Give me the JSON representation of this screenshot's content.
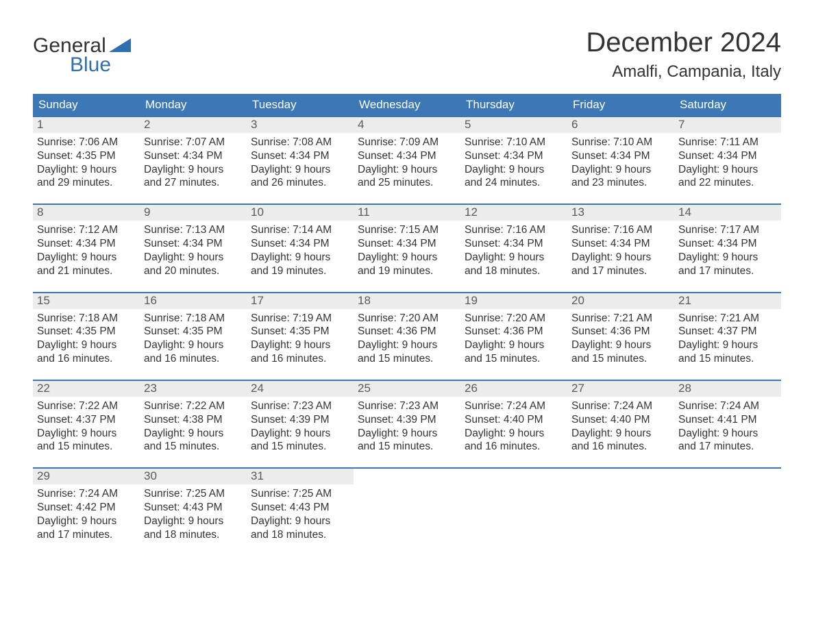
{
  "brand": {
    "word1": "General",
    "word2": "Blue",
    "accent_color": "#2f6fb0",
    "triangle_color": "#2f6fb0"
  },
  "title": "December 2024",
  "location": "Amalfi, Campania, Italy",
  "colors": {
    "header_bg": "#3b78b5",
    "header_text": "#ffffff",
    "daynum_bg": "#ececec",
    "daynum_text": "#5a5a5a",
    "body_text": "#333333",
    "week_border": "#3b78b5",
    "page_bg": "#ffffff"
  },
  "typography": {
    "title_fontsize": 40,
    "location_fontsize": 24,
    "weekday_fontsize": 17,
    "daynum_fontsize": 17,
    "cell_fontsize": 15.5,
    "logo_fontsize": 30
  },
  "weekdays": [
    "Sunday",
    "Monday",
    "Tuesday",
    "Wednesday",
    "Thursday",
    "Friday",
    "Saturday"
  ],
  "weeks": [
    [
      {
        "num": "1",
        "sunrise": "Sunrise: 7:06 AM",
        "sunset": "Sunset: 4:35 PM",
        "daylight": "Daylight: 9 hours and 29 minutes."
      },
      {
        "num": "2",
        "sunrise": "Sunrise: 7:07 AM",
        "sunset": "Sunset: 4:34 PM",
        "daylight": "Daylight: 9 hours and 27 minutes."
      },
      {
        "num": "3",
        "sunrise": "Sunrise: 7:08 AM",
        "sunset": "Sunset: 4:34 PM",
        "daylight": "Daylight: 9 hours and 26 minutes."
      },
      {
        "num": "4",
        "sunrise": "Sunrise: 7:09 AM",
        "sunset": "Sunset: 4:34 PM",
        "daylight": "Daylight: 9 hours and 25 minutes."
      },
      {
        "num": "5",
        "sunrise": "Sunrise: 7:10 AM",
        "sunset": "Sunset: 4:34 PM",
        "daylight": "Daylight: 9 hours and 24 minutes."
      },
      {
        "num": "6",
        "sunrise": "Sunrise: 7:10 AM",
        "sunset": "Sunset: 4:34 PM",
        "daylight": "Daylight: 9 hours and 23 minutes."
      },
      {
        "num": "7",
        "sunrise": "Sunrise: 7:11 AM",
        "sunset": "Sunset: 4:34 PM",
        "daylight": "Daylight: 9 hours and 22 minutes."
      }
    ],
    [
      {
        "num": "8",
        "sunrise": "Sunrise: 7:12 AM",
        "sunset": "Sunset: 4:34 PM",
        "daylight": "Daylight: 9 hours and 21 minutes."
      },
      {
        "num": "9",
        "sunrise": "Sunrise: 7:13 AM",
        "sunset": "Sunset: 4:34 PM",
        "daylight": "Daylight: 9 hours and 20 minutes."
      },
      {
        "num": "10",
        "sunrise": "Sunrise: 7:14 AM",
        "sunset": "Sunset: 4:34 PM",
        "daylight": "Daylight: 9 hours and 19 minutes."
      },
      {
        "num": "11",
        "sunrise": "Sunrise: 7:15 AM",
        "sunset": "Sunset: 4:34 PM",
        "daylight": "Daylight: 9 hours and 19 minutes."
      },
      {
        "num": "12",
        "sunrise": "Sunrise: 7:16 AM",
        "sunset": "Sunset: 4:34 PM",
        "daylight": "Daylight: 9 hours and 18 minutes."
      },
      {
        "num": "13",
        "sunrise": "Sunrise: 7:16 AM",
        "sunset": "Sunset: 4:34 PM",
        "daylight": "Daylight: 9 hours and 17 minutes."
      },
      {
        "num": "14",
        "sunrise": "Sunrise: 7:17 AM",
        "sunset": "Sunset: 4:34 PM",
        "daylight": "Daylight: 9 hours and 17 minutes."
      }
    ],
    [
      {
        "num": "15",
        "sunrise": "Sunrise: 7:18 AM",
        "sunset": "Sunset: 4:35 PM",
        "daylight": "Daylight: 9 hours and 16 minutes."
      },
      {
        "num": "16",
        "sunrise": "Sunrise: 7:18 AM",
        "sunset": "Sunset: 4:35 PM",
        "daylight": "Daylight: 9 hours and 16 minutes."
      },
      {
        "num": "17",
        "sunrise": "Sunrise: 7:19 AM",
        "sunset": "Sunset: 4:35 PM",
        "daylight": "Daylight: 9 hours and 16 minutes."
      },
      {
        "num": "18",
        "sunrise": "Sunrise: 7:20 AM",
        "sunset": "Sunset: 4:36 PM",
        "daylight": "Daylight: 9 hours and 15 minutes."
      },
      {
        "num": "19",
        "sunrise": "Sunrise: 7:20 AM",
        "sunset": "Sunset: 4:36 PM",
        "daylight": "Daylight: 9 hours and 15 minutes."
      },
      {
        "num": "20",
        "sunrise": "Sunrise: 7:21 AM",
        "sunset": "Sunset: 4:36 PM",
        "daylight": "Daylight: 9 hours and 15 minutes."
      },
      {
        "num": "21",
        "sunrise": "Sunrise: 7:21 AM",
        "sunset": "Sunset: 4:37 PM",
        "daylight": "Daylight: 9 hours and 15 minutes."
      }
    ],
    [
      {
        "num": "22",
        "sunrise": "Sunrise: 7:22 AM",
        "sunset": "Sunset: 4:37 PM",
        "daylight": "Daylight: 9 hours and 15 minutes."
      },
      {
        "num": "23",
        "sunrise": "Sunrise: 7:22 AM",
        "sunset": "Sunset: 4:38 PM",
        "daylight": "Daylight: 9 hours and 15 minutes."
      },
      {
        "num": "24",
        "sunrise": "Sunrise: 7:23 AM",
        "sunset": "Sunset: 4:39 PM",
        "daylight": "Daylight: 9 hours and 15 minutes."
      },
      {
        "num": "25",
        "sunrise": "Sunrise: 7:23 AM",
        "sunset": "Sunset: 4:39 PM",
        "daylight": "Daylight: 9 hours and 15 minutes."
      },
      {
        "num": "26",
        "sunrise": "Sunrise: 7:24 AM",
        "sunset": "Sunset: 4:40 PM",
        "daylight": "Daylight: 9 hours and 16 minutes."
      },
      {
        "num": "27",
        "sunrise": "Sunrise: 7:24 AM",
        "sunset": "Sunset: 4:40 PM",
        "daylight": "Daylight: 9 hours and 16 minutes."
      },
      {
        "num": "28",
        "sunrise": "Sunrise: 7:24 AM",
        "sunset": "Sunset: 4:41 PM",
        "daylight": "Daylight: 9 hours and 17 minutes."
      }
    ],
    [
      {
        "num": "29",
        "sunrise": "Sunrise: 7:24 AM",
        "sunset": "Sunset: 4:42 PM",
        "daylight": "Daylight: 9 hours and 17 minutes."
      },
      {
        "num": "30",
        "sunrise": "Sunrise: 7:25 AM",
        "sunset": "Sunset: 4:43 PM",
        "daylight": "Daylight: 9 hours and 18 minutes."
      },
      {
        "num": "31",
        "sunrise": "Sunrise: 7:25 AM",
        "sunset": "Sunset: 4:43 PM",
        "daylight": "Daylight: 9 hours and 18 minutes."
      },
      null,
      null,
      null,
      null
    ]
  ]
}
